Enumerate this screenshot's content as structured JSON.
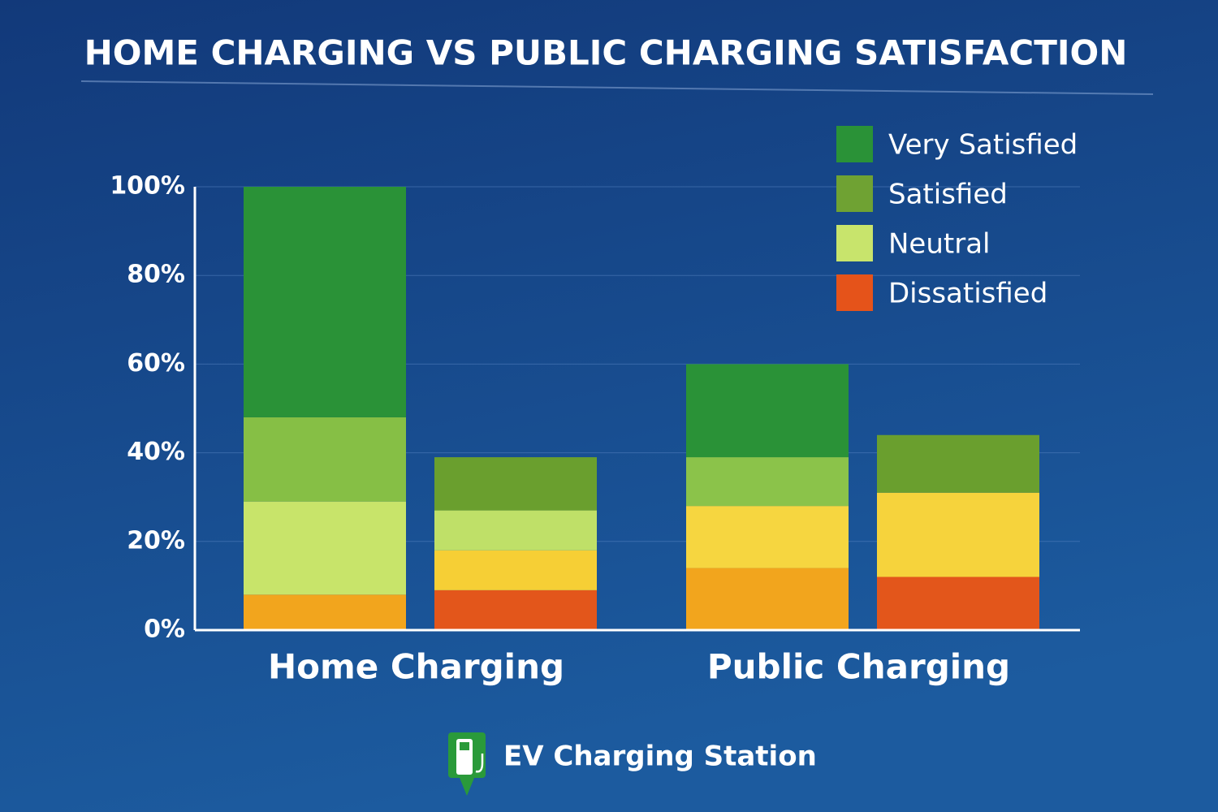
{
  "chart_data": {
    "type": "stacked_bar",
    "title": "HOME CHARGING VS PUBLIC CHARGING SATISFACTION",
    "groups": [
      {
        "label": "Home Charging",
        "bars": [
          {
            "segments": [
              {
                "value": 8,
                "color": "#f2a51d"
              },
              {
                "value": 21,
                "color": "#c8e46a"
              },
              {
                "value": 19,
                "color": "#86bf45"
              },
              {
                "value": 52,
                "color": "#2a9237"
              }
            ]
          },
          {
            "segments": [
              {
                "value": 9,
                "color": "#e3561b"
              },
              {
                "value": 9,
                "color": "#f6cf35"
              },
              {
                "value": 9,
                "color": "#bfe068"
              },
              {
                "value": 12,
                "color": "#6a9f2e"
              }
            ]
          }
        ]
      },
      {
        "label": "Public Charging",
        "bars": [
          {
            "segments": [
              {
                "value": 14,
                "color": "#f2a51d"
              },
              {
                "value": 14,
                "color": "#f6d640"
              },
              {
                "value": 11,
                "color": "#8bc34a"
              },
              {
                "value": 21,
                "color": "#2a9237"
              }
            ]
          },
          {
            "segments": [
              {
                "value": 12,
                "color": "#e3561b"
              },
              {
                "value": 19,
                "color": "#f6d33c"
              },
              {
                "value": 13,
                "color": "#6a9f2e"
              }
            ]
          }
        ]
      }
    ],
    "legend": {
      "position": "top-right",
      "items": [
        {
          "name": "Very Satisfied",
          "color": "#2a9237"
        },
        {
          "name": "Satisfied",
          "color": "#6fa233"
        },
        {
          "name": "Neutral",
          "color": "#c8e46c"
        },
        {
          "name": "Dissatisfied",
          "color": "#e5531a"
        }
      ]
    },
    "ylim": [
      0,
      100
    ],
    "yticks": [
      {
        "value": 0,
        "label": "0%"
      },
      {
        "value": 20,
        "label": "20%"
      },
      {
        "value": 40,
        "label": "40%"
      },
      {
        "value": 60,
        "label": "60%"
      },
      {
        "value": 80,
        "label": "80%"
      },
      {
        "value": 100,
        "label": "100%"
      }
    ],
    "grid": true,
    "footer": "EV Charging Station"
  }
}
